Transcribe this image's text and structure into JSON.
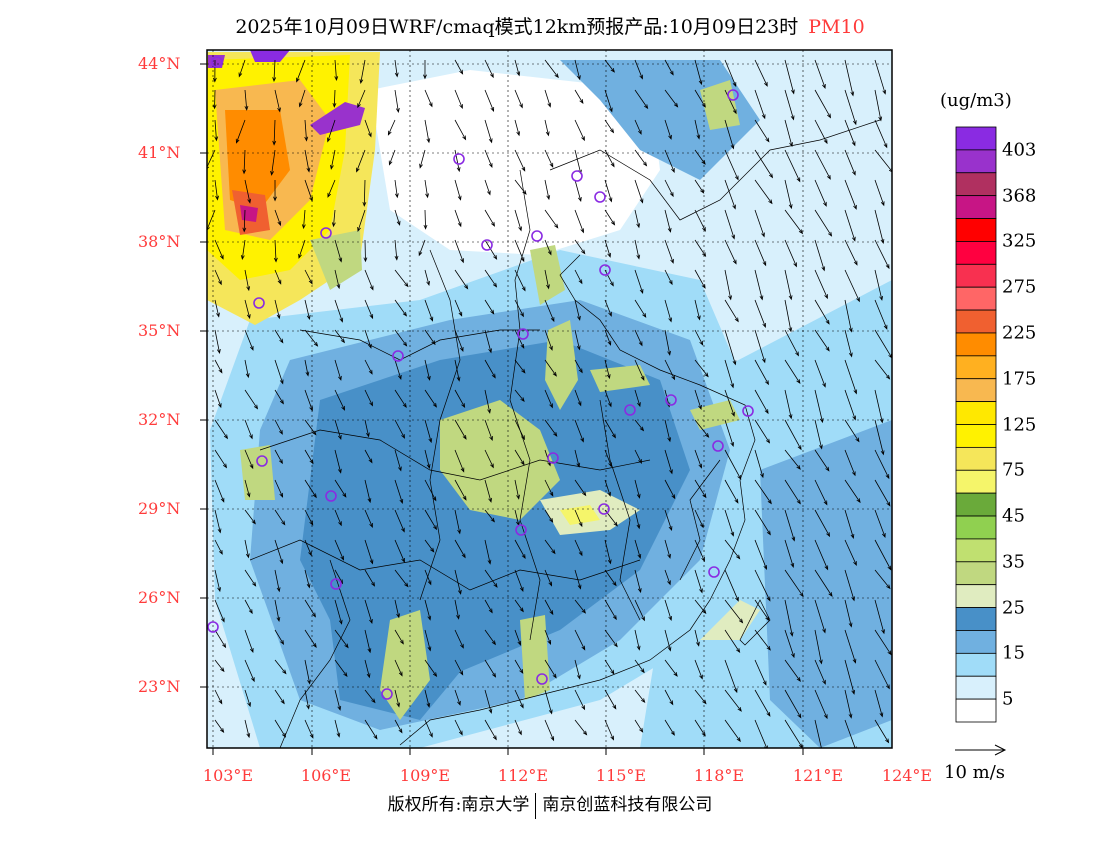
{
  "title": {
    "text": "2025年10月09日WRF/cmaq模式12km预报产品:10月09日23时",
    "product": "PM10"
  },
  "map": {
    "lat_labels": [
      "44°N",
      "41°N",
      "38°N",
      "35°N",
      "32°N",
      "29°N",
      "26°N",
      "23°N"
    ],
    "lon_labels": [
      "103°E",
      "106°E",
      "109°E",
      "112°E",
      "115°E",
      "118°E",
      "121°E",
      "124°E"
    ]
  },
  "colorbar": {
    "unit": "(ug/m3)",
    "colors": [
      "#8a2be2",
      "#9932cc",
      "#b03060",
      "#c71585",
      "#ff0000",
      "#ff0040",
      "#f83050",
      "#ff6666",
      "#f06030",
      "#ff8c00",
      "#ffb020",
      "#f8b850",
      "#ffe800",
      "#fff200",
      "#f5e65a",
      "#f5f56a",
      "#6aaa3a",
      "#90d050",
      "#c0e070",
      "#c0d880",
      "#e0ecc0",
      "#4890c8",
      "#70b0e0",
      "#a0dcf8",
      "#d8f0fc",
      "#ffffff"
    ],
    "labels": [
      "403",
      "368",
      "325",
      "275",
      "225",
      "175",
      "125",
      "75",
      "45",
      "35",
      "25",
      "15",
      "5"
    ]
  },
  "wind_scale": {
    "label": "10 m/s"
  },
  "footer": {
    "copyright": "版权所有:南京大学",
    "company": "南京创蓝科技有限公司"
  }
}
